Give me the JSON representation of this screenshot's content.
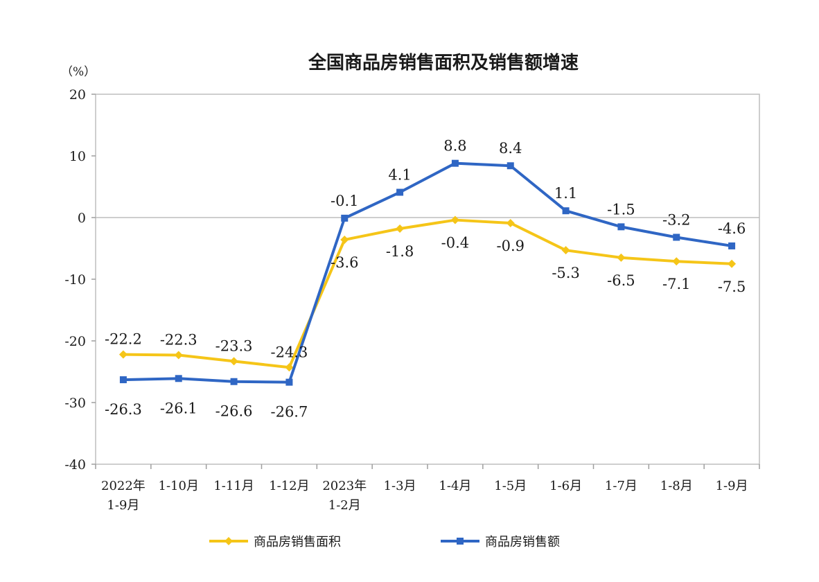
{
  "chart_data": {
    "type": "line",
    "title": "全国商品房销售面积及销售额增速",
    "ylabel": "（%）",
    "xlabel": "",
    "ylim": [
      -40,
      20
    ],
    "yticks": [
      20,
      10,
      0,
      -10,
      -20,
      -30,
      -40
    ],
    "categories": [
      [
        "2022年",
        "1-9月"
      ],
      [
        "1-10月"
      ],
      [
        "1-11月"
      ],
      [
        "1-12月"
      ],
      [
        "2023年",
        "1-2月"
      ],
      [
        "1-3月"
      ],
      [
        "1-4月"
      ],
      [
        "1-5月"
      ],
      [
        "1-6月"
      ],
      [
        "1-7月"
      ],
      [
        "1-8月"
      ],
      [
        "1-9月"
      ]
    ],
    "series": [
      {
        "name": "商品房销售面积",
        "color": "#F5C518",
        "marker": "diamond",
        "values": [
          -22.2,
          -22.3,
          -23.3,
          -24.3,
          -3.6,
          -1.8,
          -0.4,
          -0.9,
          -5.3,
          -6.5,
          -7.1,
          -7.5
        ],
        "labels": [
          "-22.2",
          "-22.3",
          "-23.3",
          "-24.3",
          "-3.6",
          "-1.8",
          "-0.4",
          "-0.9",
          "-5.3",
          "-6.5",
          "-7.1",
          "-7.5"
        ]
      },
      {
        "name": "商品房销售额",
        "color": "#2F66C4",
        "marker": "square",
        "values": [
          -26.3,
          -26.1,
          -26.6,
          -26.7,
          -0.1,
          4.1,
          8.8,
          8.4,
          1.1,
          -1.5,
          -3.2,
          -4.6
        ],
        "labels": [
          "-26.3",
          "-26.1",
          "-26.6",
          "-26.7",
          "-0.1",
          "4.1",
          "8.8",
          "8.4",
          "1.1",
          "-1.5",
          "-3.2",
          "-4.6"
        ]
      }
    ],
    "grid": false,
    "legend_position": "bottom"
  }
}
